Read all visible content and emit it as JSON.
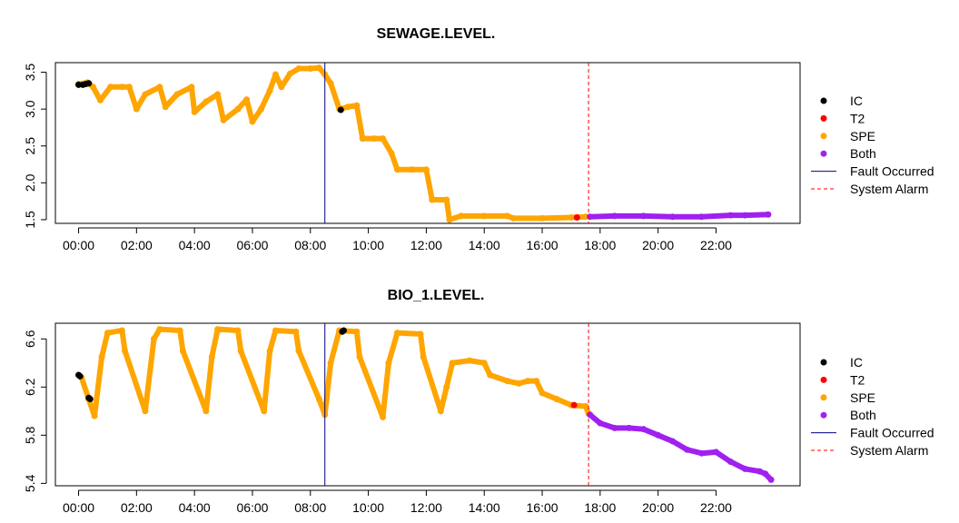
{
  "chart_data": [
    {
      "type": "scatter",
      "title": "SEWAGE.LEVEL.",
      "xlabel": "",
      "ylabel": "",
      "x_unit": "hours",
      "xlim": [
        -0.8,
        24.9
      ],
      "ylim": [
        1.45,
        3.63
      ],
      "xticks": [
        0,
        2,
        4,
        6,
        8,
        10,
        12,
        14,
        16,
        18,
        20,
        22
      ],
      "xtick_labels": [
        "00:00",
        "02:00",
        "04:00",
        "06:00",
        "08:00",
        "10:00",
        "12:00",
        "14:00",
        "16:00",
        "18:00",
        "20:00",
        "22:00"
      ],
      "yticks": [
        1.5,
        2.0,
        2.5,
        3.0,
        3.5
      ],
      "ytick_labels": [
        "1.5",
        "2.0",
        "2.5",
        "3.0",
        "3.5"
      ],
      "fault_x": 8.5,
      "alarm_x": 17.6,
      "series": [
        {
          "name": "IC",
          "points": [
            [
              0.0,
              3.33
            ],
            [
              0.15,
              3.33
            ],
            [
              0.25,
              3.34
            ],
            [
              0.35,
              3.35
            ],
            [
              9.05,
              2.99
            ]
          ]
        },
        {
          "name": "SPE",
          "points": [
            [
              0.0,
              3.34
            ],
            [
              0.3,
              3.36
            ],
            [
              0.5,
              3.3
            ],
            [
              0.75,
              3.12
            ],
            [
              1.1,
              3.3
            ],
            [
              1.5,
              3.3
            ],
            [
              1.75,
              3.3
            ],
            [
              2.0,
              3.0
            ],
            [
              2.3,
              3.2
            ],
            [
              2.8,
              3.3
            ],
            [
              3.0,
              3.03
            ],
            [
              3.4,
              3.2
            ],
            [
              3.9,
              3.3
            ],
            [
              4.0,
              2.96
            ],
            [
              4.4,
              3.1
            ],
            [
              4.8,
              3.2
            ],
            [
              5.0,
              2.85
            ],
            [
              5.5,
              3.0
            ],
            [
              5.8,
              3.13
            ],
            [
              6.0,
              2.83
            ],
            [
              6.3,
              3.0
            ],
            [
              6.6,
              3.25
            ],
            [
              6.8,
              3.47
            ],
            [
              7.0,
              3.3
            ],
            [
              7.3,
              3.48
            ],
            [
              7.6,
              3.55
            ],
            [
              8.0,
              3.55
            ],
            [
              8.3,
              3.56
            ],
            [
              8.5,
              3.47
            ],
            [
              8.7,
              3.35
            ],
            [
              9.0,
              3.0
            ],
            [
              9.3,
              3.03
            ],
            [
              9.6,
              3.05
            ],
            [
              9.8,
              2.6
            ],
            [
              10.2,
              2.6
            ],
            [
              10.5,
              2.6
            ],
            [
              10.8,
              2.4
            ],
            [
              11.0,
              2.18
            ],
            [
              11.5,
              2.18
            ],
            [
              12.0,
              2.18
            ],
            [
              12.2,
              1.77
            ],
            [
              12.7,
              1.77
            ],
            [
              12.8,
              1.5
            ],
            [
              13.2,
              1.55
            ],
            [
              14.0,
              1.55
            ],
            [
              14.8,
              1.55
            ],
            [
              15.0,
              1.52
            ],
            [
              16.0,
              1.52
            ],
            [
              17.0,
              1.53
            ],
            [
              17.5,
              1.54
            ]
          ]
        },
        {
          "name": "T2",
          "points": [
            [
              17.2,
              1.53
            ]
          ]
        },
        {
          "name": "Both",
          "points": [
            [
              17.65,
              1.54
            ],
            [
              18.5,
              1.55
            ],
            [
              19.5,
              1.55
            ],
            [
              20.5,
              1.54
            ],
            [
              21.5,
              1.54
            ],
            [
              22.5,
              1.56
            ],
            [
              23.0,
              1.56
            ],
            [
              23.8,
              1.57
            ]
          ]
        }
      ]
    },
    {
      "type": "scatter",
      "title": "BIO_1.LEVEL.",
      "xlabel": "",
      "ylabel": "",
      "x_unit": "hours",
      "xlim": [
        -0.8,
        24.9
      ],
      "ylim": [
        5.38,
        6.73
      ],
      "xticks": [
        0,
        2,
        4,
        6,
        8,
        10,
        12,
        14,
        16,
        18,
        20,
        22
      ],
      "xtick_labels": [
        "00:00",
        "02:00",
        "04:00",
        "06:00",
        "08:00",
        "10:00",
        "12:00",
        "14:00",
        "16:00",
        "18:00",
        "20:00",
        "22:00"
      ],
      "yticks": [
        5.4,
        5.8,
        6.2,
        6.6
      ],
      "ytick_labels": [
        "5.4",
        "5.8",
        "6.2",
        "6.6"
      ],
      "fault_x": 8.5,
      "alarm_x": 17.6,
      "series": [
        {
          "name": "IC",
          "points": [
            [
              0.0,
              6.3
            ],
            [
              0.05,
              6.29
            ],
            [
              0.35,
              6.11
            ],
            [
              0.4,
              6.1
            ],
            [
              9.1,
              6.66
            ],
            [
              9.15,
              6.67
            ]
          ]
        },
        {
          "name": "SPE",
          "points": [
            [
              0.1,
              6.28
            ],
            [
              0.35,
              6.1
            ],
            [
              0.55,
              5.96
            ],
            [
              0.8,
              6.45
            ],
            [
              1.0,
              6.65
            ],
            [
              1.5,
              6.67
            ],
            [
              1.6,
              6.5
            ],
            [
              2.3,
              6.0
            ],
            [
              2.6,
              6.6
            ],
            [
              2.8,
              6.68
            ],
            [
              3.5,
              6.67
            ],
            [
              3.6,
              6.5
            ],
            [
              4.4,
              6.0
            ],
            [
              4.6,
              6.45
            ],
            [
              4.8,
              6.68
            ],
            [
              5.5,
              6.67
            ],
            [
              5.6,
              6.5
            ],
            [
              6.4,
              6.0
            ],
            [
              6.6,
              6.5
            ],
            [
              6.8,
              6.67
            ],
            [
              7.5,
              6.66
            ],
            [
              7.6,
              6.5
            ],
            [
              8.3,
              6.1
            ],
            [
              8.5,
              5.97
            ],
            [
              8.7,
              6.4
            ],
            [
              9.0,
              6.67
            ],
            [
              9.6,
              6.66
            ],
            [
              9.7,
              6.45
            ],
            [
              10.5,
              5.95
            ],
            [
              10.7,
              6.4
            ],
            [
              11.0,
              6.65
            ],
            [
              11.8,
              6.64
            ],
            [
              11.9,
              6.45
            ],
            [
              12.5,
              6.0
            ],
            [
              12.7,
              6.2
            ],
            [
              12.9,
              6.4
            ],
            [
              13.5,
              6.42
            ],
            [
              14.0,
              6.4
            ],
            [
              14.2,
              6.3
            ],
            [
              14.8,
              6.25
            ],
            [
              15.2,
              6.23
            ],
            [
              15.5,
              6.25
            ],
            [
              15.8,
              6.25
            ],
            [
              16.0,
              6.15
            ],
            [
              16.5,
              6.1
            ],
            [
              17.0,
              6.05
            ],
            [
              17.5,
              6.04
            ],
            [
              17.6,
              5.98
            ]
          ]
        },
        {
          "name": "T2",
          "points": [
            [
              17.1,
              6.05
            ]
          ]
        },
        {
          "name": "Both",
          "points": [
            [
              17.65,
              5.97
            ],
            [
              18.0,
              5.9
            ],
            [
              18.5,
              5.86
            ],
            [
              19.0,
              5.86
            ],
            [
              19.5,
              5.85
            ],
            [
              20.0,
              5.8
            ],
            [
              20.5,
              5.75
            ],
            [
              21.0,
              5.68
            ],
            [
              21.5,
              5.65
            ],
            [
              22.0,
              5.66
            ],
            [
              22.5,
              5.58
            ],
            [
              23.0,
              5.52
            ],
            [
              23.5,
              5.5
            ],
            [
              23.7,
              5.48
            ],
            [
              23.9,
              5.43
            ]
          ]
        }
      ]
    }
  ],
  "legend": {
    "items": [
      {
        "label": "IC",
        "kind": "point",
        "color": "#000000"
      },
      {
        "label": "T2",
        "kind": "point",
        "color": "#ff0000"
      },
      {
        "label": "SPE",
        "kind": "point",
        "color": "#ffa500"
      },
      {
        "label": "Both",
        "kind": "point",
        "color": "#a020f0"
      },
      {
        "label": "Fault Occurred",
        "kind": "solid-line",
        "color": "#000080"
      },
      {
        "label": "System Alarm",
        "kind": "dashed-line",
        "color": "#ff0000"
      }
    ]
  },
  "colors": {
    "IC": "#000000",
    "T2": "#ff0000",
    "SPE": "#ffa500",
    "Both": "#a020f0",
    "fault": "#000080",
    "alarm": "#ff0000"
  }
}
